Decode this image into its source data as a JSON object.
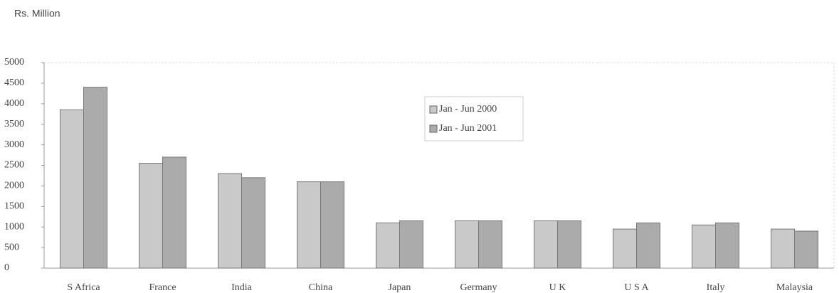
{
  "chart_data": {
    "type": "bar",
    "y_label": "Rs. Million",
    "categories": [
      "S Africa",
      "France",
      "India",
      "China",
      "Japan",
      "Germany",
      "U K",
      "U S A",
      "Italy",
      "Malaysia"
    ],
    "series": [
      {
        "name": "Jan - Jun 2000",
        "color": "#c9c9c9",
        "values": [
          3850,
          2550,
          2300,
          2100,
          1100,
          1150,
          1150,
          950,
          1050,
          950
        ]
      },
      {
        "name": "Jan - Jun 2001",
        "color": "#ababab",
        "values": [
          4400,
          2700,
          2200,
          2100,
          1150,
          1150,
          1150,
          1100,
          1100,
          900
        ]
      }
    ],
    "ylim": [
      0,
      5000
    ],
    "yticks": [
      0,
      500,
      1000,
      1500,
      2000,
      2500,
      3000,
      3500,
      4000,
      4500,
      5000
    ],
    "grid": false
  }
}
